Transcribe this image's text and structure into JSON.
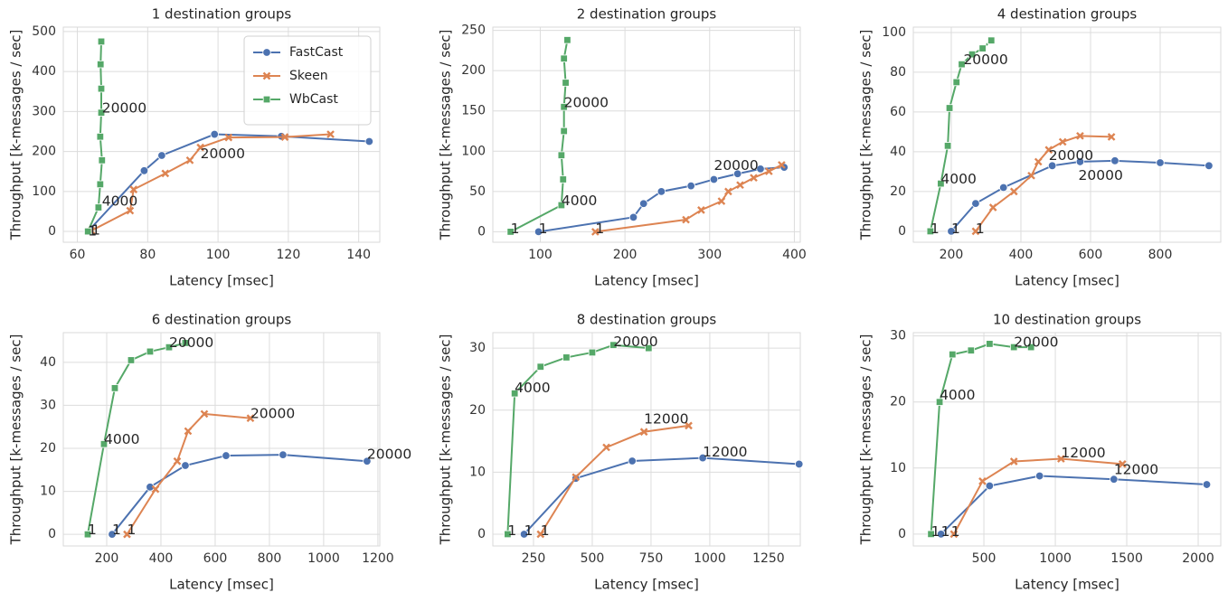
{
  "chart_data": [
    {
      "type": "line",
      "title": "1 destination groups",
      "x_label": "Latency [msec]",
      "y_label": "Throughput [k-messages / sec]",
      "xlim": [
        56,
        146
      ],
      "ylim": [
        -27,
        511
      ],
      "xticks": [
        60,
        80,
        100,
        120,
        140
      ],
      "yticks": [
        0,
        100,
        200,
        300,
        400,
        500
      ],
      "grid": true,
      "legend": "upper right",
      "series": [
        {
          "name": "FastCast",
          "color": "#4c72b0",
          "marker": "circle",
          "x": [
            63,
            79,
            84,
            99,
            118,
            143
          ],
          "values": [
            0,
            152,
            190,
            243,
            238,
            225
          ]
        },
        {
          "name": "Skeen",
          "color": "#dd8452",
          "marker": "x",
          "x": [
            64,
            75,
            76,
            85,
            92,
            95,
            103,
            119,
            132
          ],
          "values": [
            2,
            52,
            105,
            145,
            178,
            210,
            235,
            236,
            243
          ]
        },
        {
          "name": "WbCast",
          "color": "#55a868",
          "marker": "square",
          "x": [
            63,
            66,
            66.5,
            67,
            66.5,
            66.8,
            66.8,
            66.6,
            66.8
          ],
          "values": [
            0,
            60,
            118,
            178,
            237,
            297,
            357,
            418,
            475
          ]
        }
      ],
      "annotations": [
        {
          "text": "1",
          "x": 63,
          "y": 0
        },
        {
          "text": "1",
          "x": 64,
          "y": 2
        },
        {
          "text": "4000",
          "x": 67,
          "y": 75
        },
        {
          "text": "20000",
          "x": 67,
          "y": 307
        },
        {
          "text": "20000",
          "x": 95,
          "y": 193
        }
      ]
    },
    {
      "type": "line",
      "title": "2 destination groups",
      "x_label": "Latency [msec]",
      "y_label": "Throughput [k-messages / sec]",
      "xlim": [
        44,
        407
      ],
      "ylim": [
        -13,
        254
      ],
      "xticks": [
        100,
        200,
        300,
        400
      ],
      "yticks": [
        0,
        50,
        100,
        150,
        200,
        250
      ],
      "grid": true,
      "series": [
        {
          "color": "#4c72b0",
          "marker": "circle",
          "x": [
            98,
            210,
            222,
            243,
            278,
            305,
            333,
            360,
            388
          ],
          "values": [
            0,
            18,
            35,
            50,
            57,
            65,
            72,
            78,
            80
          ]
        },
        {
          "color": "#dd8452",
          "marker": "x",
          "x": [
            165,
            272,
            290,
            314,
            322,
            336,
            352,
            370,
            385
          ],
          "values": [
            0,
            15,
            27,
            38,
            50,
            58,
            67,
            75,
            83
          ]
        },
        {
          "color": "#55a868",
          "marker": "square",
          "x": [
            65,
            125,
            127,
            125,
            128,
            128,
            130,
            128,
            132
          ],
          "values": [
            0,
            33,
            65,
            95,
            125,
            155,
            185,
            215,
            238
          ]
        }
      ],
      "annotations": [
        {
          "text": "1",
          "x": 65,
          "y": 3
        },
        {
          "text": "1",
          "x": 98,
          "y": 3
        },
        {
          "text": "1",
          "x": 165,
          "y": 3
        },
        {
          "text": "4000",
          "x": 125,
          "y": 38
        },
        {
          "text": "20000",
          "x": 128,
          "y": 160
        },
        {
          "text": "20000",
          "x": 305,
          "y": 82
        }
      ]
    },
    {
      "type": "line",
      "title": "4 destination groups",
      "x_label": "Latency [msec]",
      "y_label": "Throughput [k-messages / sec]",
      "xlim": [
        91,
        974
      ],
      "ylim": [
        -5.5,
        102.7
      ],
      "xticks": [
        200,
        400,
        600,
        800
      ],
      "yticks": [
        0,
        20,
        40,
        60,
        80,
        100
      ],
      "grid": true,
      "series": [
        {
          "color": "#4c72b0",
          "marker": "circle",
          "x": [
            200,
            270,
            350,
            490,
            570,
            670,
            800,
            940
          ],
          "values": [
            0,
            14,
            22,
            33,
            35,
            35.5,
            34.5,
            33
          ]
        },
        {
          "color": "#dd8452",
          "marker": "x",
          "x": [
            270,
            320,
            380,
            430,
            450,
            480,
            520,
            570,
            660
          ],
          "values": [
            0,
            12,
            20,
            28,
            35,
            41,
            45,
            48,
            47.5
          ]
        },
        {
          "color": "#55a868",
          "marker": "square",
          "x": [
            140,
            170,
            190,
            195,
            215,
            230,
            260,
            290,
            315
          ],
          "values": [
            0,
            24,
            43,
            62,
            75,
            84,
            89,
            92,
            96
          ]
        }
      ],
      "annotations": [
        {
          "text": "1",
          "x": 140,
          "y": 1
        },
        {
          "text": "1",
          "x": 200,
          "y": 1
        },
        {
          "text": "1",
          "x": 270,
          "y": 1
        },
        {
          "text": "4000",
          "x": 170,
          "y": 26
        },
        {
          "text": "20000",
          "x": 235,
          "y": 86
        },
        {
          "text": "20000",
          "x": 480,
          "y": 38
        },
        {
          "text": "20000",
          "x": 565,
          "y": 28
        }
      ]
    },
    {
      "type": "line",
      "title": "6 destination groups",
      "x_label": "Latency [msec]",
      "y_label": "Throughput [k-messages / sec]",
      "xlim": [
        40,
        1207
      ],
      "ylim": [
        -2.7,
        46.9
      ],
      "xticks": [
        200,
        400,
        600,
        800,
        1000,
        1200
      ],
      "yticks": [
        0,
        10,
        20,
        30,
        40
      ],
      "grid": true,
      "series": [
        {
          "color": "#4c72b0",
          "marker": "circle",
          "x": [
            220,
            360,
            490,
            640,
            850,
            1160
          ],
          "values": [
            0,
            11,
            16,
            18.3,
            18.5,
            17
          ]
        },
        {
          "color": "#dd8452",
          "marker": "x",
          "x": [
            275,
            380,
            460,
            500,
            560,
            730
          ],
          "values": [
            0,
            10.5,
            17,
            24,
            28,
            27
          ]
        },
        {
          "color": "#55a868",
          "marker": "square",
          "x": [
            130,
            190,
            230,
            290,
            360,
            430,
            490
          ],
          "values": [
            0,
            21,
            34,
            40.5,
            42.5,
            43.5,
            44.5
          ]
        }
      ],
      "annotations": [
        {
          "text": "1",
          "x": 130,
          "y": 1
        },
        {
          "text": "1",
          "x": 220,
          "y": 1
        },
        {
          "text": "1",
          "x": 275,
          "y": 1
        },
        {
          "text": "4000",
          "x": 190,
          "y": 22
        },
        {
          "text": "20000",
          "x": 430,
          "y": 44.5
        },
        {
          "text": "20000",
          "x": 730,
          "y": 28
        },
        {
          "text": "20000",
          "x": 1160,
          "y": 18.5
        }
      ]
    },
    {
      "type": "line",
      "title": "8 destination groups",
      "x_label": "Latency [msec]",
      "y_label": "Throughput [k-messages / sec]",
      "xlim": [
        77,
        1385
      ],
      "ylim": [
        -1.9,
        32.5
      ],
      "xticks": [
        250,
        500,
        750,
        1000,
        1250
      ],
      "yticks": [
        0,
        10,
        20,
        30
      ],
      "grid": true,
      "series": [
        {
          "color": "#4c72b0",
          "marker": "circle",
          "x": [
            210,
            430,
            670,
            970,
            1380
          ],
          "values": [
            0,
            9,
            11.8,
            12.3,
            11.3
          ]
        },
        {
          "color": "#dd8452",
          "marker": "x",
          "x": [
            280,
            430,
            560,
            720,
            910
          ],
          "values": [
            0,
            9.2,
            14,
            16.5,
            17.5
          ]
        },
        {
          "color": "#55a868",
          "marker": "square",
          "x": [
            140,
            170,
            280,
            390,
            500,
            590,
            740
          ],
          "values": [
            0,
            22.7,
            27,
            28.5,
            29.3,
            30.5,
            30
          ]
        }
      ],
      "annotations": [
        {
          "text": "1",
          "x": 140,
          "y": 0.5
        },
        {
          "text": "1",
          "x": 210,
          "y": 0.5
        },
        {
          "text": "1",
          "x": 280,
          "y": 0.5
        },
        {
          "text": "4000",
          "x": 170,
          "y": 23.5
        },
        {
          "text": "20000",
          "x": 590,
          "y": 31
        },
        {
          "text": "12000",
          "x": 720,
          "y": 18.5
        },
        {
          "text": "12000",
          "x": 970,
          "y": 13.2
        }
      ]
    },
    {
      "type": "line",
      "title": "10 destination groups",
      "x_label": "Latency [msec]",
      "y_label": "Throughput [k-messages / sec]",
      "xlim": [
        6,
        2158
      ],
      "ylim": [
        -1.8,
        30.5
      ],
      "xticks": [
        500,
        1000,
        1500,
        2000
      ],
      "yticks": [
        0,
        10,
        20,
        30
      ],
      "grid": true,
      "series": [
        {
          "color": "#4c72b0",
          "marker": "circle",
          "x": [
            200,
            540,
            890,
            1410,
            2060
          ],
          "values": [
            0,
            7.3,
            8.8,
            8.3,
            7.5
          ]
        },
        {
          "color": "#dd8452",
          "marker": "x",
          "x": [
            290,
            490,
            710,
            1040,
            1470
          ],
          "values": [
            0,
            8,
            11,
            11.4,
            10.6
          ]
        },
        {
          "color": "#55a868",
          "marker": "square",
          "x": [
            130,
            190,
            280,
            410,
            540,
            710,
            830
          ],
          "values": [
            0,
            20,
            27.2,
            27.8,
            28.8,
            28.3,
            28.3
          ]
        }
      ],
      "annotations": [
        {
          "text": "1",
          "x": 130,
          "y": 0.3
        },
        {
          "text": "1",
          "x": 200,
          "y": 0.3
        },
        {
          "text": "1",
          "x": 270,
          "y": 0.3
        },
        {
          "text": "4000",
          "x": 190,
          "y": 21
        },
        {
          "text": "20000",
          "x": 710,
          "y": 29
        },
        {
          "text": "12000",
          "x": 1040,
          "y": 12.2
        },
        {
          "text": "12000",
          "x": 1410,
          "y": 9.7
        }
      ]
    }
  ]
}
